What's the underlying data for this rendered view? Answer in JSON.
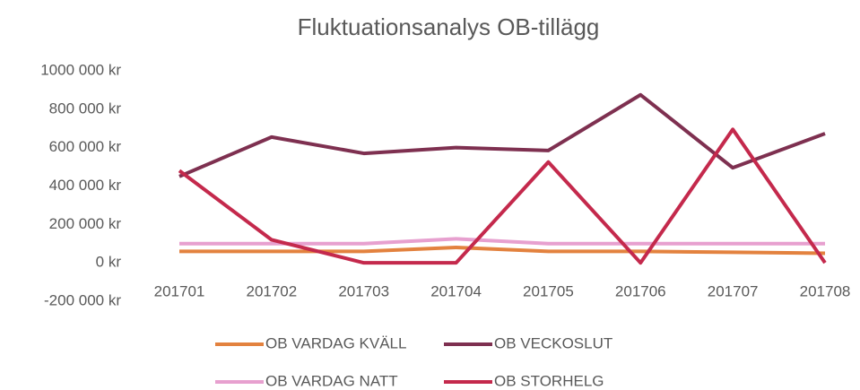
{
  "chart_data": {
    "type": "line",
    "title": "Fluktuationsanalys OB-tillägg",
    "categories": [
      "201701",
      "201702",
      "201703",
      "201704",
      "201705",
      "201706",
      "201707",
      "201708"
    ],
    "series": [
      {
        "name": "OB VARDAG KVÄLL",
        "color": "#e3823f",
        "values": [
          60000,
          60000,
          60000,
          80000,
          60000,
          60000,
          55000,
          50000
        ]
      },
      {
        "name": "OB VECKOSLUT",
        "color": "#7e3050",
        "values": [
          450000,
          655000,
          570000,
          600000,
          585000,
          875000,
          495000,
          673000
        ]
      },
      {
        "name": "OB VARDAG NATT",
        "color": "#e7a0cf",
        "values": [
          100000,
          100000,
          100000,
          125000,
          100000,
          100000,
          100000,
          100000
        ]
      },
      {
        "name": "OB STORHELG",
        "color": "#c4294c",
        "values": [
          480000,
          120000,
          0,
          0,
          525000,
          0,
          695000,
          0
        ]
      }
    ],
    "ylim": [
      -200000,
      1000000
    ],
    "yticks": [
      {
        "value": -200000,
        "label": "-200 000 kr"
      },
      {
        "value": 0,
        "label": "0 kr"
      },
      {
        "value": 200000,
        "label": "200 000 kr"
      },
      {
        "value": 400000,
        "label": "400 000 kr"
      },
      {
        "value": 600000,
        "label": "600 000 kr"
      },
      {
        "value": 800000,
        "label": "800 000 kr"
      },
      {
        "value": 1000000,
        "label": "1000 000 kr"
      }
    ],
    "grid": false
  }
}
